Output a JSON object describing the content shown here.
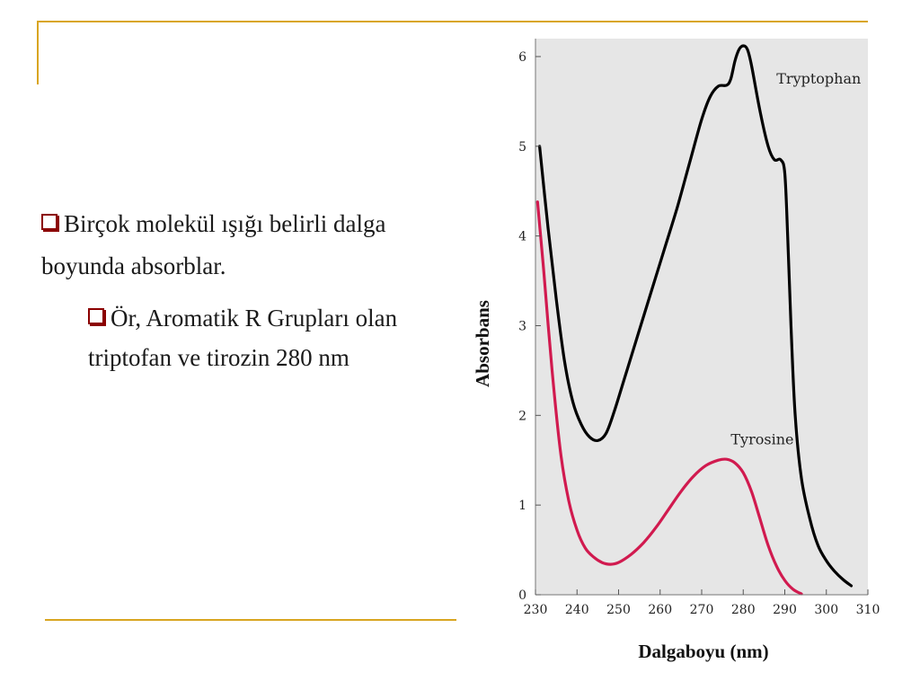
{
  "slide": {
    "accent_color": "#d9a521",
    "bullet_color": "#8b0000",
    "bullet_main": "Birçok molekül ışığı belirli dalga boyunda absorblar.",
    "bullet_sub": "Ör, Aromatik R Grupları olan triptofan ve tirozin 280 nm"
  },
  "chart_data": {
    "type": "line",
    "xlabel": "Dalgaboyu (nm)",
    "ylabel": "Absorbans",
    "xlim": [
      230,
      310
    ],
    "ylim": [
      0,
      6.2
    ],
    "xticks": [
      230,
      240,
      250,
      260,
      270,
      280,
      290,
      300,
      310
    ],
    "yticks": [
      0,
      1,
      2,
      3,
      4,
      5,
      6
    ],
    "background": "#e6e6e6",
    "grid": false,
    "series": [
      {
        "name": "Tryptophan",
        "color": "#000000",
        "points": [
          [
            231,
            5.0
          ],
          [
            233,
            4.1
          ],
          [
            235,
            3.3
          ],
          [
            237,
            2.6
          ],
          [
            239,
            2.15
          ],
          [
            241,
            1.9
          ],
          [
            243,
            1.76
          ],
          [
            245,
            1.72
          ],
          [
            247,
            1.8
          ],
          [
            249,
            2.05
          ],
          [
            252,
            2.5
          ],
          [
            255,
            2.95
          ],
          [
            258,
            3.4
          ],
          [
            261,
            3.85
          ],
          [
            264,
            4.3
          ],
          [
            267,
            4.8
          ],
          [
            270,
            5.3
          ],
          [
            272,
            5.55
          ],
          [
            274,
            5.67
          ],
          [
            276,
            5.68
          ],
          [
            277,
            5.75
          ],
          [
            278,
            5.95
          ],
          [
            279,
            6.08
          ],
          [
            280,
            6.12
          ],
          [
            281,
            6.08
          ],
          [
            282,
            5.9
          ],
          [
            284,
            5.4
          ],
          [
            286,
            5.0
          ],
          [
            287.5,
            4.85
          ],
          [
            289,
            4.85
          ],
          [
            290,
            4.7
          ],
          [
            290.7,
            4.0
          ],
          [
            291.5,
            3.0
          ],
          [
            292.5,
            2.0
          ],
          [
            294,
            1.3
          ],
          [
            296,
            0.85
          ],
          [
            298,
            0.55
          ],
          [
            300,
            0.38
          ],
          [
            302,
            0.26
          ],
          [
            304,
            0.17
          ],
          [
            306,
            0.1
          ]
        ]
      },
      {
        "name": "Tyrosine",
        "color": "#d11a4f",
        "points": [
          [
            230.5,
            4.38
          ],
          [
            232,
            3.6
          ],
          [
            234,
            2.5
          ],
          [
            236,
            1.6
          ],
          [
            238,
            1.05
          ],
          [
            240,
            0.72
          ],
          [
            242,
            0.52
          ],
          [
            244,
            0.42
          ],
          [
            246,
            0.36
          ],
          [
            248,
            0.34
          ],
          [
            250,
            0.36
          ],
          [
            253,
            0.45
          ],
          [
            256,
            0.58
          ],
          [
            259,
            0.75
          ],
          [
            262,
            0.95
          ],
          [
            265,
            1.15
          ],
          [
            268,
            1.32
          ],
          [
            271,
            1.44
          ],
          [
            274,
            1.5
          ],
          [
            276,
            1.51
          ],
          [
            278,
            1.47
          ],
          [
            280,
            1.36
          ],
          [
            282,
            1.15
          ],
          [
            284,
            0.85
          ],
          [
            286,
            0.55
          ],
          [
            288,
            0.32
          ],
          [
            290,
            0.16
          ],
          [
            292,
            0.06
          ],
          [
            294,
            0.01
          ]
        ]
      }
    ],
    "annotations": [
      {
        "text": "Tryptophan",
        "x": 288,
        "y": 5.7
      },
      {
        "text": "Tyrosine",
        "x": 277,
        "y": 1.68
      }
    ]
  }
}
